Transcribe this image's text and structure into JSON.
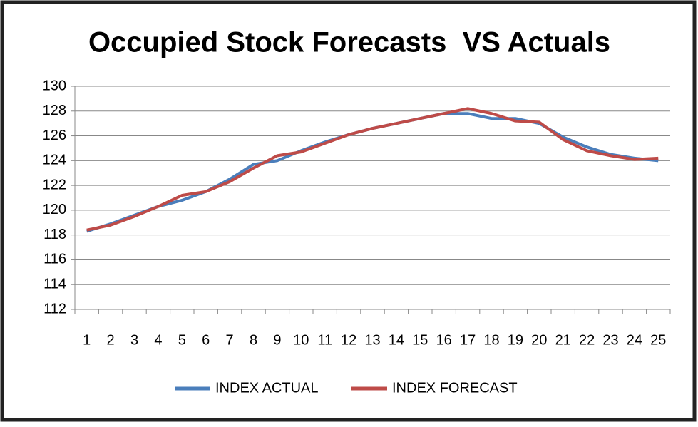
{
  "chart_data": {
    "type": "line",
    "title": "Occupied Stock Forecasts  VS Actuals",
    "categories": [
      "1",
      "2",
      "3",
      "4",
      "5",
      "6",
      "7",
      "8",
      "9",
      "10",
      "11",
      "12",
      "13",
      "14",
      "15",
      "16",
      "17",
      "18",
      "19",
      "20",
      "21",
      "22",
      "23",
      "24",
      "25"
    ],
    "series": [
      {
        "name": "INDEX ACTUAL",
        "color": "#4a7ebb",
        "values": [
          118.3,
          118.9,
          119.6,
          120.3,
          120.8,
          121.5,
          122.5,
          123.7,
          124.0,
          124.8,
          125.5,
          126.1,
          126.6,
          127.0,
          127.4,
          127.8,
          127.8,
          127.4,
          127.4,
          127.0,
          125.9,
          125.1,
          124.5,
          124.2,
          124.0
        ]
      },
      {
        "name": "INDEX FORECAST",
        "color": "#be4b48",
        "values": [
          118.4,
          118.8,
          119.5,
          120.3,
          121.2,
          121.5,
          122.3,
          123.4,
          124.4,
          124.7,
          125.4,
          126.1,
          126.6,
          127.0,
          127.4,
          127.8,
          128.2,
          127.8,
          127.2,
          127.1,
          125.7,
          124.8,
          124.4,
          124.1,
          124.2
        ]
      }
    ],
    "ylim": [
      112,
      130
    ],
    "yticks": [
      112,
      114,
      116,
      118,
      120,
      122,
      124,
      126,
      128,
      130
    ],
    "grid": true,
    "legend": "bottom"
  }
}
